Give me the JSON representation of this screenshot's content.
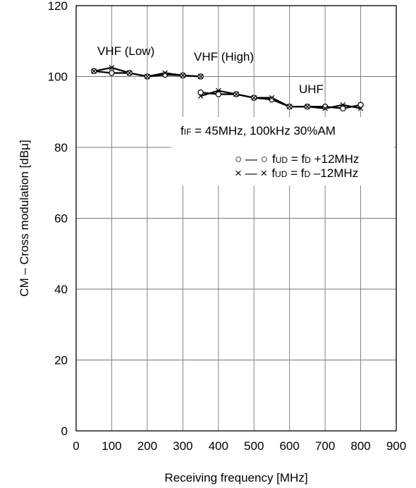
{
  "chart_data": {
    "type": "line",
    "xlabel": "Receiving frequency [MHz]",
    "ylabel": "CM – Cross modulation [dBμ]",
    "xlim": [
      0,
      900
    ],
    "ylim": [
      0,
      120
    ],
    "xticks": [
      "0",
      "100",
      "200",
      "300",
      "400",
      "500",
      "600",
      "700",
      "800",
      "900"
    ],
    "yticks": [
      "0",
      "20",
      "40",
      "60",
      "80",
      "100",
      "120"
    ],
    "grid": true,
    "bands": [
      "VHF (Low)",
      "VHF (High)",
      "UHF"
    ],
    "condition": {
      "f": "f",
      "sub": "IF",
      "rest": " = 45MHz, 100kHz   30%AM"
    },
    "legend": [
      {
        "marker": "○ — ○",
        "f": "f",
        "sub": "UD",
        "mid": " = f",
        "sub2": "D",
        "rest": " +12MHz"
      },
      {
        "marker": "× — ×",
        "f": "f",
        "sub": "UD",
        "mid": " = f",
        "sub2": "D",
        "rest": " –12MHz"
      }
    ],
    "series": [
      {
        "marker": "circle",
        "segments": [
          {
            "x": [
              50,
              100,
              150,
              200,
              250,
              300,
              350
            ],
            "y": [
              101.5,
              101,
              101,
              100,
              100.5,
              100.3,
              100
            ]
          },
          {
            "x": [
              350,
              400,
              450,
              500,
              550,
              600,
              650,
              700,
              750,
              800
            ],
            "y": [
              95.5,
              95,
              95,
              94,
              93.5,
              91.5,
              91.5,
              91.5,
              91,
              92
            ]
          }
        ]
      },
      {
        "marker": "cross",
        "segments": [
          {
            "x": [
              50,
              100,
              150,
              200,
              250,
              300,
              350
            ],
            "y": [
              101.5,
              102.5,
              101,
              100,
              101,
              100.3,
              100
            ]
          },
          {
            "x": [
              350,
              400,
              450,
              500,
              550,
              600,
              650,
              700,
              750,
              800
            ],
            "y": [
              94.5,
              96,
              95,
              94,
              94,
              91.5,
              91.5,
              91,
              92,
              91
            ]
          }
        ]
      }
    ]
  }
}
